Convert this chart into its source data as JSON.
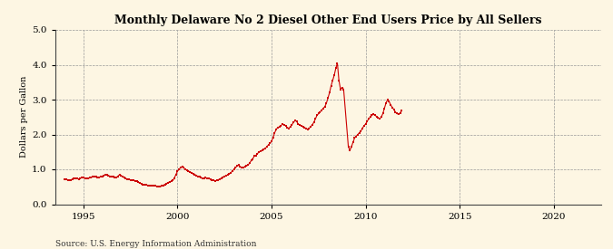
{
  "title": "Monthly Delaware No 2 Diesel Other End Users Price by All Sellers",
  "ylabel": "Dollars per Gallon",
  "source": "Source: U.S. Energy Information Administration",
  "background_color": "#fdf6e3",
  "line_color": "#cc0000",
  "marker": "s",
  "marker_size": 1.8,
  "xlim": [
    1993.5,
    2022.5
  ],
  "ylim": [
    0.0,
    5.0
  ],
  "xticks": [
    1995,
    2000,
    2005,
    2010,
    2015,
    2020
  ],
  "yticks": [
    0.0,
    1.0,
    2.0,
    3.0,
    4.0,
    5.0
  ],
  "data": [
    [
      1994.0,
      0.72
    ],
    [
      1994.083,
      0.705
    ],
    [
      1994.167,
      0.695
    ],
    [
      1994.25,
      0.69
    ],
    [
      1994.333,
      0.7
    ],
    [
      1994.417,
      0.715
    ],
    [
      1994.5,
      0.73
    ],
    [
      1994.583,
      0.74
    ],
    [
      1994.667,
      0.735
    ],
    [
      1994.75,
      0.72
    ],
    [
      1994.833,
      0.74
    ],
    [
      1994.917,
      0.76
    ],
    [
      1995.0,
      0.755
    ],
    [
      1995.083,
      0.74
    ],
    [
      1995.167,
      0.73
    ],
    [
      1995.25,
      0.735
    ],
    [
      1995.333,
      0.755
    ],
    [
      1995.417,
      0.77
    ],
    [
      1995.5,
      0.78
    ],
    [
      1995.583,
      0.795
    ],
    [
      1995.667,
      0.78
    ],
    [
      1995.75,
      0.76
    ],
    [
      1995.833,
      0.77
    ],
    [
      1995.917,
      0.785
    ],
    [
      1996.0,
      0.795
    ],
    [
      1996.083,
      0.82
    ],
    [
      1996.167,
      0.845
    ],
    [
      1996.25,
      0.84
    ],
    [
      1996.333,
      0.825
    ],
    [
      1996.417,
      0.8
    ],
    [
      1996.5,
      0.79
    ],
    [
      1996.583,
      0.78
    ],
    [
      1996.667,
      0.76
    ],
    [
      1996.75,
      0.77
    ],
    [
      1996.833,
      0.8
    ],
    [
      1996.917,
      0.845
    ],
    [
      1997.0,
      0.82
    ],
    [
      1997.083,
      0.795
    ],
    [
      1997.167,
      0.76
    ],
    [
      1997.25,
      0.74
    ],
    [
      1997.333,
      0.72
    ],
    [
      1997.417,
      0.71
    ],
    [
      1997.5,
      0.7
    ],
    [
      1997.583,
      0.69
    ],
    [
      1997.667,
      0.68
    ],
    [
      1997.75,
      0.67
    ],
    [
      1997.833,
      0.655
    ],
    [
      1997.917,
      0.625
    ],
    [
      1998.0,
      0.605
    ],
    [
      1998.083,
      0.585
    ],
    [
      1998.167,
      0.565
    ],
    [
      1998.25,
      0.555
    ],
    [
      1998.333,
      0.55
    ],
    [
      1998.417,
      0.545
    ],
    [
      1998.5,
      0.535
    ],
    [
      1998.583,
      0.53
    ],
    [
      1998.667,
      0.525
    ],
    [
      1998.75,
      0.52
    ],
    [
      1998.833,
      0.52
    ],
    [
      1998.917,
      0.51
    ],
    [
      1999.0,
      0.5
    ],
    [
      1999.083,
      0.5
    ],
    [
      1999.167,
      0.52
    ],
    [
      1999.25,
      0.545
    ],
    [
      1999.333,
      0.57
    ],
    [
      1999.417,
      0.595
    ],
    [
      1999.5,
      0.62
    ],
    [
      1999.583,
      0.64
    ],
    [
      1999.667,
      0.65
    ],
    [
      1999.75,
      0.68
    ],
    [
      1999.833,
      0.75
    ],
    [
      1999.917,
      0.845
    ],
    [
      2000.0,
      0.945
    ],
    [
      2000.083,
      1.0
    ],
    [
      2000.167,
      1.05
    ],
    [
      2000.25,
      1.08
    ],
    [
      2000.333,
      1.05
    ],
    [
      2000.417,
      1.0
    ],
    [
      2000.5,
      0.98
    ],
    [
      2000.583,
      0.95
    ],
    [
      2000.667,
      0.93
    ],
    [
      2000.75,
      0.9
    ],
    [
      2000.833,
      0.88
    ],
    [
      2000.917,
      0.855
    ],
    [
      2001.0,
      0.825
    ],
    [
      2001.083,
      0.8
    ],
    [
      2001.167,
      0.782
    ],
    [
      2001.25,
      0.76
    ],
    [
      2001.333,
      0.74
    ],
    [
      2001.417,
      0.748
    ],
    [
      2001.5,
      0.758
    ],
    [
      2001.583,
      0.748
    ],
    [
      2001.667,
      0.738
    ],
    [
      2001.75,
      0.72
    ],
    [
      2001.833,
      0.7
    ],
    [
      2001.917,
      0.682
    ],
    [
      2002.0,
      0.672
    ],
    [
      2002.083,
      0.682
    ],
    [
      2002.167,
      0.7
    ],
    [
      2002.25,
      0.72
    ],
    [
      2002.333,
      0.748
    ],
    [
      2002.417,
      0.778
    ],
    [
      2002.5,
      0.8
    ],
    [
      2002.583,
      0.82
    ],
    [
      2002.667,
      0.84
    ],
    [
      2002.75,
      0.86
    ],
    [
      2002.833,
      0.9
    ],
    [
      2002.917,
      0.948
    ],
    [
      2003.0,
      1.0
    ],
    [
      2003.083,
      1.048
    ],
    [
      2003.167,
      1.095
    ],
    [
      2003.25,
      1.118
    ],
    [
      2003.333,
      1.078
    ],
    [
      2003.417,
      1.048
    ],
    [
      2003.5,
      1.05
    ],
    [
      2003.583,
      1.08
    ],
    [
      2003.667,
      1.098
    ],
    [
      2003.75,
      1.118
    ],
    [
      2003.833,
      1.178
    ],
    [
      2003.917,
      1.248
    ],
    [
      2004.0,
      1.298
    ],
    [
      2004.083,
      1.378
    ],
    [
      2004.167,
      1.398
    ],
    [
      2004.25,
      1.448
    ],
    [
      2004.333,
      1.498
    ],
    [
      2004.417,
      1.518
    ],
    [
      2004.5,
      1.548
    ],
    [
      2004.583,
      1.578
    ],
    [
      2004.667,
      1.598
    ],
    [
      2004.75,
      1.648
    ],
    [
      2004.833,
      1.698
    ],
    [
      2004.917,
      1.748
    ],
    [
      2005.0,
      1.798
    ],
    [
      2005.083,
      1.918
    ],
    [
      2005.167,
      2.048
    ],
    [
      2005.25,
      2.148
    ],
    [
      2005.333,
      2.198
    ],
    [
      2005.417,
      2.218
    ],
    [
      2005.5,
      2.248
    ],
    [
      2005.583,
      2.298
    ],
    [
      2005.667,
      2.278
    ],
    [
      2005.75,
      2.248
    ],
    [
      2005.833,
      2.198
    ],
    [
      2005.917,
      2.178
    ],
    [
      2006.0,
      2.218
    ],
    [
      2006.083,
      2.278
    ],
    [
      2006.167,
      2.348
    ],
    [
      2006.25,
      2.398
    ],
    [
      2006.333,
      2.378
    ],
    [
      2006.417,
      2.298
    ],
    [
      2006.5,
      2.278
    ],
    [
      2006.583,
      2.248
    ],
    [
      2006.667,
      2.218
    ],
    [
      2006.75,
      2.198
    ],
    [
      2006.833,
      2.178
    ],
    [
      2006.917,
      2.148
    ],
    [
      2007.0,
      2.178
    ],
    [
      2007.083,
      2.218
    ],
    [
      2007.167,
      2.278
    ],
    [
      2007.25,
      2.348
    ],
    [
      2007.333,
      2.448
    ],
    [
      2007.417,
      2.548
    ],
    [
      2007.5,
      2.598
    ],
    [
      2007.583,
      2.648
    ],
    [
      2007.667,
      2.698
    ],
    [
      2007.75,
      2.748
    ],
    [
      2007.833,
      2.798
    ],
    [
      2007.917,
      2.898
    ],
    [
      2008.0,
      3.048
    ],
    [
      2008.083,
      3.198
    ],
    [
      2008.167,
      3.398
    ],
    [
      2008.25,
      3.548
    ],
    [
      2008.333,
      3.698
    ],
    [
      2008.417,
      3.898
    ],
    [
      2008.5,
      4.048
    ],
    [
      2008.583,
      3.548
    ],
    [
      2008.667,
      3.298
    ],
    [
      2008.75,
      3.348
    ],
    [
      2008.833,
      3.298
    ],
    [
      2009.083,
      1.648
    ],
    [
      2009.167,
      1.548
    ],
    [
      2009.25,
      1.648
    ],
    [
      2009.333,
      1.778
    ],
    [
      2009.417,
      1.898
    ],
    [
      2009.5,
      1.948
    ],
    [
      2009.583,
      1.998
    ],
    [
      2009.667,
      2.048
    ],
    [
      2009.75,
      2.098
    ],
    [
      2009.833,
      2.178
    ],
    [
      2009.917,
      2.248
    ],
    [
      2010.0,
      2.298
    ],
    [
      2010.083,
      2.378
    ],
    [
      2010.167,
      2.448
    ],
    [
      2010.25,
      2.498
    ],
    [
      2010.333,
      2.548
    ],
    [
      2010.417,
      2.578
    ],
    [
      2010.5,
      2.548
    ],
    [
      2010.583,
      2.518
    ],
    [
      2010.667,
      2.478
    ],
    [
      2010.75,
      2.448
    ],
    [
      2010.833,
      2.498
    ],
    [
      2010.917,
      2.598
    ],
    [
      2011.0,
      2.748
    ],
    [
      2011.083,
      2.898
    ],
    [
      2011.167,
      2.998
    ],
    [
      2011.25,
      2.948
    ],
    [
      2011.333,
      2.848
    ],
    [
      2011.417,
      2.778
    ],
    [
      2011.5,
      2.718
    ],
    [
      2011.583,
      2.648
    ],
    [
      2011.667,
      2.598
    ],
    [
      2011.75,
      2.578
    ],
    [
      2011.833,
      2.618
    ],
    [
      2011.917,
      2.678
    ]
  ]
}
